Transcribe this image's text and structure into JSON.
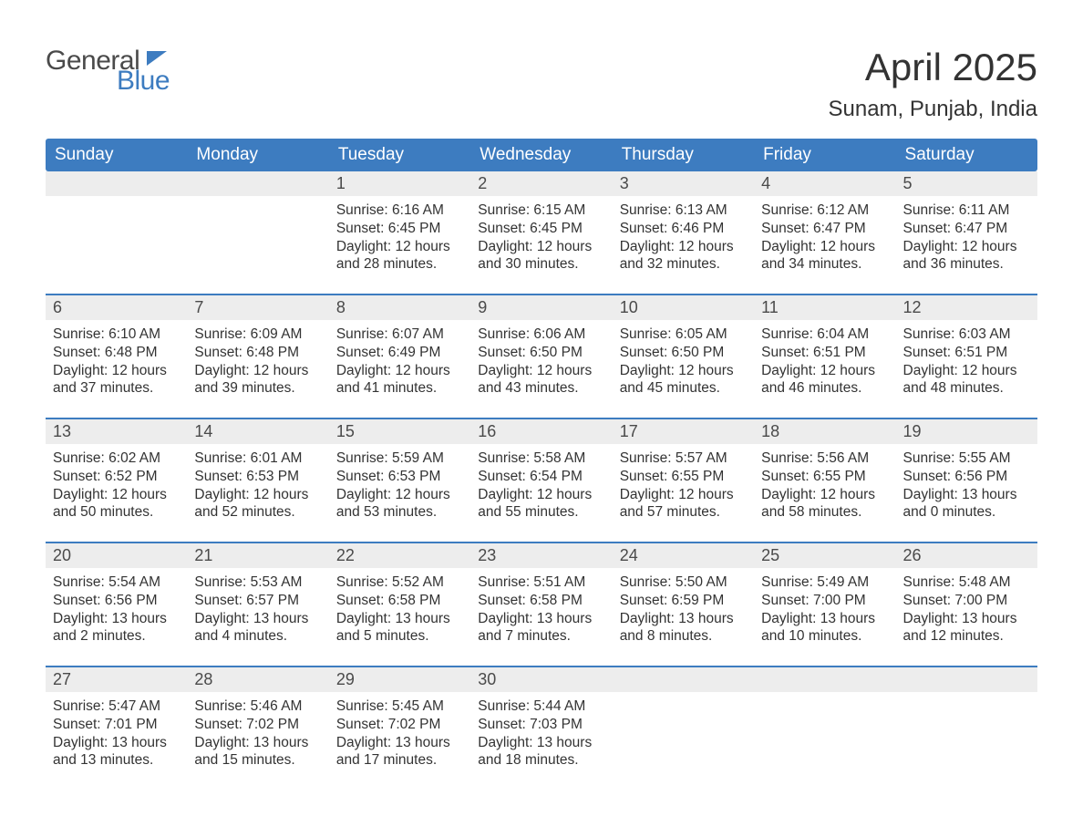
{
  "brand": {
    "part1": "General",
    "part2": "Blue"
  },
  "title": {
    "month": "April 2025",
    "location": "Sunam, Punjab, India"
  },
  "colors": {
    "header_bg": "#3d7cc0",
    "header_text": "#ffffff",
    "daynum_bg": "#ededed",
    "text": "#333333",
    "week_divider": "#3d7cc0",
    "page_bg": "#ffffff"
  },
  "weekdays": [
    "Sunday",
    "Monday",
    "Tuesday",
    "Wednesday",
    "Thursday",
    "Friday",
    "Saturday"
  ],
  "weeks": [
    [
      {
        "day": ""
      },
      {
        "day": ""
      },
      {
        "day": "1",
        "sunrise": "Sunrise: 6:16 AM",
        "sunset": "Sunset: 6:45 PM",
        "daylight1": "Daylight: 12 hours",
        "daylight2": "and 28 minutes."
      },
      {
        "day": "2",
        "sunrise": "Sunrise: 6:15 AM",
        "sunset": "Sunset: 6:45 PM",
        "daylight1": "Daylight: 12 hours",
        "daylight2": "and 30 minutes."
      },
      {
        "day": "3",
        "sunrise": "Sunrise: 6:13 AM",
        "sunset": "Sunset: 6:46 PM",
        "daylight1": "Daylight: 12 hours",
        "daylight2": "and 32 minutes."
      },
      {
        "day": "4",
        "sunrise": "Sunrise: 6:12 AM",
        "sunset": "Sunset: 6:47 PM",
        "daylight1": "Daylight: 12 hours",
        "daylight2": "and 34 minutes."
      },
      {
        "day": "5",
        "sunrise": "Sunrise: 6:11 AM",
        "sunset": "Sunset: 6:47 PM",
        "daylight1": "Daylight: 12 hours",
        "daylight2": "and 36 minutes."
      }
    ],
    [
      {
        "day": "6",
        "sunrise": "Sunrise: 6:10 AM",
        "sunset": "Sunset: 6:48 PM",
        "daylight1": "Daylight: 12 hours",
        "daylight2": "and 37 minutes."
      },
      {
        "day": "7",
        "sunrise": "Sunrise: 6:09 AM",
        "sunset": "Sunset: 6:48 PM",
        "daylight1": "Daylight: 12 hours",
        "daylight2": "and 39 minutes."
      },
      {
        "day": "8",
        "sunrise": "Sunrise: 6:07 AM",
        "sunset": "Sunset: 6:49 PM",
        "daylight1": "Daylight: 12 hours",
        "daylight2": "and 41 minutes."
      },
      {
        "day": "9",
        "sunrise": "Sunrise: 6:06 AM",
        "sunset": "Sunset: 6:50 PM",
        "daylight1": "Daylight: 12 hours",
        "daylight2": "and 43 minutes."
      },
      {
        "day": "10",
        "sunrise": "Sunrise: 6:05 AM",
        "sunset": "Sunset: 6:50 PM",
        "daylight1": "Daylight: 12 hours",
        "daylight2": "and 45 minutes."
      },
      {
        "day": "11",
        "sunrise": "Sunrise: 6:04 AM",
        "sunset": "Sunset: 6:51 PM",
        "daylight1": "Daylight: 12 hours",
        "daylight2": "and 46 minutes."
      },
      {
        "day": "12",
        "sunrise": "Sunrise: 6:03 AM",
        "sunset": "Sunset: 6:51 PM",
        "daylight1": "Daylight: 12 hours",
        "daylight2": "and 48 minutes."
      }
    ],
    [
      {
        "day": "13",
        "sunrise": "Sunrise: 6:02 AM",
        "sunset": "Sunset: 6:52 PM",
        "daylight1": "Daylight: 12 hours",
        "daylight2": "and 50 minutes."
      },
      {
        "day": "14",
        "sunrise": "Sunrise: 6:01 AM",
        "sunset": "Sunset: 6:53 PM",
        "daylight1": "Daylight: 12 hours",
        "daylight2": "and 52 minutes."
      },
      {
        "day": "15",
        "sunrise": "Sunrise: 5:59 AM",
        "sunset": "Sunset: 6:53 PM",
        "daylight1": "Daylight: 12 hours",
        "daylight2": "and 53 minutes."
      },
      {
        "day": "16",
        "sunrise": "Sunrise: 5:58 AM",
        "sunset": "Sunset: 6:54 PM",
        "daylight1": "Daylight: 12 hours",
        "daylight2": "and 55 minutes."
      },
      {
        "day": "17",
        "sunrise": "Sunrise: 5:57 AM",
        "sunset": "Sunset: 6:55 PM",
        "daylight1": "Daylight: 12 hours",
        "daylight2": "and 57 minutes."
      },
      {
        "day": "18",
        "sunrise": "Sunrise: 5:56 AM",
        "sunset": "Sunset: 6:55 PM",
        "daylight1": "Daylight: 12 hours",
        "daylight2": "and 58 minutes."
      },
      {
        "day": "19",
        "sunrise": "Sunrise: 5:55 AM",
        "sunset": "Sunset: 6:56 PM",
        "daylight1": "Daylight: 13 hours",
        "daylight2": "and 0 minutes."
      }
    ],
    [
      {
        "day": "20",
        "sunrise": "Sunrise: 5:54 AM",
        "sunset": "Sunset: 6:56 PM",
        "daylight1": "Daylight: 13 hours",
        "daylight2": "and 2 minutes."
      },
      {
        "day": "21",
        "sunrise": "Sunrise: 5:53 AM",
        "sunset": "Sunset: 6:57 PM",
        "daylight1": "Daylight: 13 hours",
        "daylight2": "and 4 minutes."
      },
      {
        "day": "22",
        "sunrise": "Sunrise: 5:52 AM",
        "sunset": "Sunset: 6:58 PM",
        "daylight1": "Daylight: 13 hours",
        "daylight2": "and 5 minutes."
      },
      {
        "day": "23",
        "sunrise": "Sunrise: 5:51 AM",
        "sunset": "Sunset: 6:58 PM",
        "daylight1": "Daylight: 13 hours",
        "daylight2": "and 7 minutes."
      },
      {
        "day": "24",
        "sunrise": "Sunrise: 5:50 AM",
        "sunset": "Sunset: 6:59 PM",
        "daylight1": "Daylight: 13 hours",
        "daylight2": "and 8 minutes."
      },
      {
        "day": "25",
        "sunrise": "Sunrise: 5:49 AM",
        "sunset": "Sunset: 7:00 PM",
        "daylight1": "Daylight: 13 hours",
        "daylight2": "and 10 minutes."
      },
      {
        "day": "26",
        "sunrise": "Sunrise: 5:48 AM",
        "sunset": "Sunset: 7:00 PM",
        "daylight1": "Daylight: 13 hours",
        "daylight2": "and 12 minutes."
      }
    ],
    [
      {
        "day": "27",
        "sunrise": "Sunrise: 5:47 AM",
        "sunset": "Sunset: 7:01 PM",
        "daylight1": "Daylight: 13 hours",
        "daylight2": "and 13 minutes."
      },
      {
        "day": "28",
        "sunrise": "Sunrise: 5:46 AM",
        "sunset": "Sunset: 7:02 PM",
        "daylight1": "Daylight: 13 hours",
        "daylight2": "and 15 minutes."
      },
      {
        "day": "29",
        "sunrise": "Sunrise: 5:45 AM",
        "sunset": "Sunset: 7:02 PM",
        "daylight1": "Daylight: 13 hours",
        "daylight2": "and 17 minutes."
      },
      {
        "day": "30",
        "sunrise": "Sunrise: 5:44 AM",
        "sunset": "Sunset: 7:03 PM",
        "daylight1": "Daylight: 13 hours",
        "daylight2": "and 18 minutes."
      },
      {
        "day": ""
      },
      {
        "day": ""
      },
      {
        "day": ""
      }
    ]
  ]
}
